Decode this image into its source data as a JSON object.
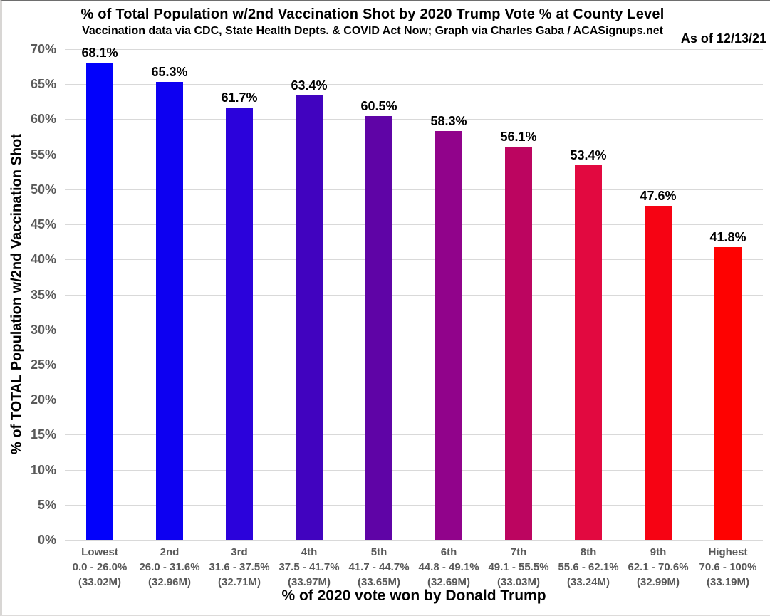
{
  "header": {
    "title": "% of Total Population w/2nd Vaccination Shot by 2020 Trump Vote % at County Level",
    "subtitle": "Vaccination data via CDC, State Health Depts. & COVID Act Now; Graph via Charles Gaba / ACASignups.net",
    "as_of": "As of 12/13/21"
  },
  "chart_data": {
    "type": "bar",
    "title": "% of Total Population w/2nd Vaccination Shot by 2020 Trump Vote % at County Level",
    "subtitle": "Vaccination data via CDC, State Health Depts. & COVID Act Now; Graph via Charles Gaba / ACASignups.net",
    "as_of_label": "As of 12/13/21",
    "xlabel": "% of 2020 vote won by Donald Trump",
    "ylabel": "% of TOTAL Population w/2nd Vaccination Shot",
    "ylim": [
      0,
      70
    ],
    "ytick_step": 5,
    "grid": true,
    "legend": "none",
    "yticks": [
      {
        "value": 70,
        "label": "70%"
      },
      {
        "value": 65,
        "label": "65%"
      },
      {
        "value": 60,
        "label": "60%"
      },
      {
        "value": 55,
        "label": "55%"
      },
      {
        "value": 50,
        "label": "50%"
      },
      {
        "value": 45,
        "label": "45%"
      },
      {
        "value": 40,
        "label": "40%"
      },
      {
        "value": 35,
        "label": "35%"
      },
      {
        "value": 30,
        "label": "30%"
      },
      {
        "value": 25,
        "label": "25%"
      },
      {
        "value": 20,
        "label": "20%"
      },
      {
        "value": 15,
        "label": "15%"
      },
      {
        "value": 10,
        "label": "10%"
      },
      {
        "value": 5,
        "label": "5%"
      },
      {
        "value": 0,
        "label": "0%"
      }
    ],
    "bars": [
      {
        "rank": "Lowest",
        "range": "0.0 - 26.0%",
        "population": "(33.02M)",
        "value": 68.1,
        "label": "68.1%",
        "color": "#0201fb"
      },
      {
        "rank": "2nd",
        "range": "26.0 - 31.6%",
        "population": "(32.96M)",
        "value": 65.3,
        "label": "65.3%",
        "color": "#0d00f1"
      },
      {
        "rank": "3rd",
        "range": "31.6 - 37.5%",
        "population": "(32.71M)",
        "value": 61.7,
        "label": "61.7%",
        "color": "#2b02db"
      },
      {
        "rank": "4th",
        "range": "37.5 - 41.7%",
        "population": "(33.97M)",
        "value": 63.4,
        "label": "63.4%",
        "color": "#4103bf"
      },
      {
        "rank": "5th",
        "range": "41.7 - 44.7%",
        "population": "(33.65M)",
        "value": 60.5,
        "label": "60.5%",
        "color": "#5f04a6"
      },
      {
        "rank": "6th",
        "range": "44.8 - 49.1%",
        "population": "(32.69M)",
        "value": 58.3,
        "label": "58.3%",
        "color": "#91038b"
      },
      {
        "rank": "7th",
        "range": "49.1 - 55.5%",
        "population": "(33.03M)",
        "value": 56.1,
        "label": "56.1%",
        "color": "#bc0560"
      },
      {
        "rank": "8th",
        "range": "55.6 - 62.1%",
        "population": "(33.24M)",
        "value": 53.4,
        "label": "53.4%",
        "color": "#e20940"
      },
      {
        "rank": "9th",
        "range": "62.1 - 70.6%",
        "population": "(32.99M)",
        "value": 47.6,
        "label": "47.6%",
        "color": "#f60313"
      },
      {
        "rank": "Highest",
        "range": "70.6 - 100%",
        "population": "(33.19M)",
        "value": 41.8,
        "label": "41.8%",
        "color": "#fe0201"
      }
    ],
    "colors": {
      "axis_text": "#595959",
      "gridline": "#d9d9d9",
      "value_label_text": "#000000",
      "gradient_start": "#0000ff",
      "gradient_end": "#ff0000"
    }
  }
}
